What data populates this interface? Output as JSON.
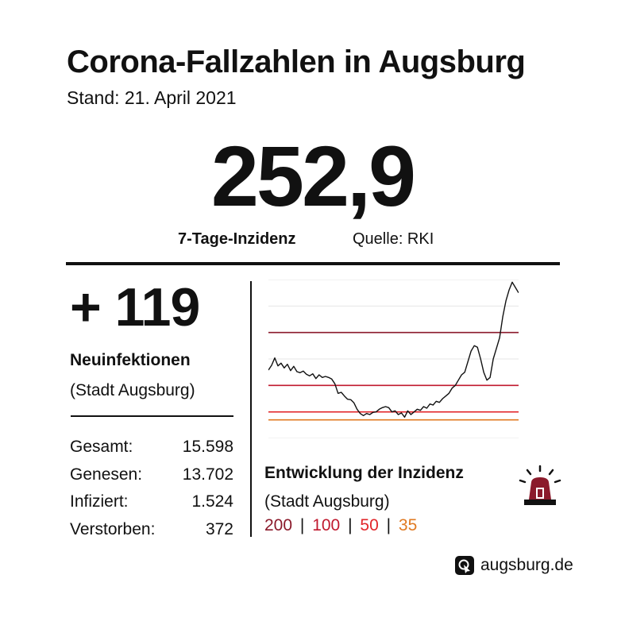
{
  "header": {
    "title": "Corona-Fallzahlen in Augsburg",
    "date": "Stand: 21. April 2021"
  },
  "incidence": {
    "value": "252,9",
    "label": "7-Tage-Inzidenz",
    "source": "Quelle: RKI"
  },
  "new_infections": {
    "value": "+ 119",
    "label": "Neuinfektionen",
    "sublabel": "(Stadt Augsburg)"
  },
  "stats": [
    {
      "label": "Gesamt:",
      "value": "15.598"
    },
    {
      "label": "Genesen:",
      "value": "13.702"
    },
    {
      "label": "Infiziert:",
      "value": "1.524"
    },
    {
      "label": "Verstorben:",
      "value": "372"
    }
  ],
  "chart_caption": {
    "title": "Entwicklung der Inzidenz",
    "subtitle": "(Stadt Augsburg)"
  },
  "legend": {
    "items": [
      {
        "text": "200",
        "color": "#8b1a2b"
      },
      {
        "text": "100",
        "color": "#c0192e"
      },
      {
        "text": "50",
        "color": "#e2262a"
      },
      {
        "text": "35",
        "color": "#e07a22"
      }
    ],
    "separator": "|"
  },
  "footer": {
    "text": "augsburg.de",
    "icon": "augsburg-logo-icon"
  },
  "siren": {
    "icon": "siren-icon",
    "color": "#8b1a2b"
  },
  "chart_data": {
    "type": "line",
    "title": "",
    "xlabel": "",
    "ylabel": "",
    "ylim": [
      0,
      300
    ],
    "grid": true,
    "thresholds": [
      {
        "value": 200,
        "color": "#8b1a2b"
      },
      {
        "value": 100,
        "color": "#c0192e"
      },
      {
        "value": 50,
        "color": "#e2262a"
      },
      {
        "value": 35,
        "color": "#e07a22"
      }
    ],
    "series": [
      {
        "values": [
          129,
          138,
          152,
          137,
          142,
          133,
          140,
          128,
          136,
          126,
          124,
          127,
          121,
          118,
          122,
          113,
          120,
          115,
          117,
          115,
          112,
          103,
          85,
          87,
          80,
          74,
          73,
          67,
          55,
          47,
          43,
          47,
          45,
          49,
          50,
          55,
          58,
          60,
          58,
          50,
          52,
          45,
          48,
          40,
          52,
          45,
          50,
          55,
          53,
          60,
          57,
          65,
          63,
          70,
          68,
          75,
          80,
          85,
          95,
          100,
          110,
          120,
          125,
          145,
          165,
          175,
          172,
          150,
          125,
          110,
          115,
          150,
          170,
          190,
          230,
          260,
          280,
          295,
          285,
          275
        ]
      }
    ]
  }
}
